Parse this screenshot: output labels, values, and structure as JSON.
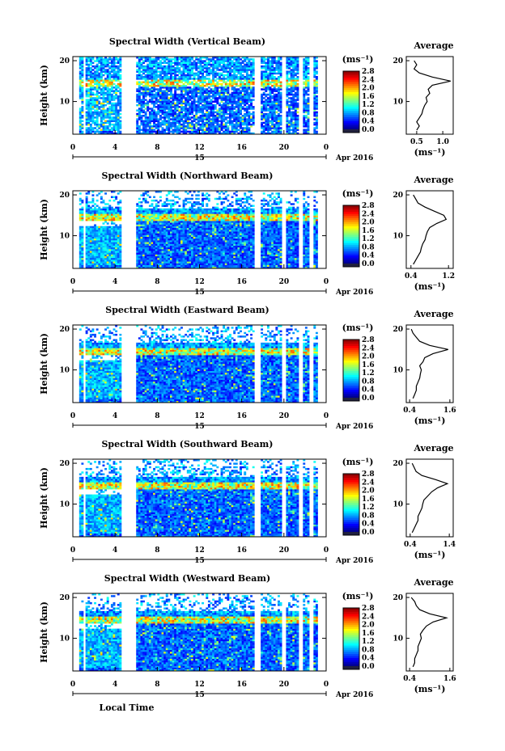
{
  "chart_data": [
    {
      "type": "heatmap",
      "title": "Spectral Width (Vertical Beam)",
      "ylabel": "Height (km)",
      "yticks": [
        "10",
        "20"
      ],
      "ylim": [
        2,
        21
      ],
      "xticks": [
        "0",
        "4",
        "8",
        "12",
        "16",
        "20",
        "0"
      ],
      "xlim": [
        0,
        24
      ],
      "date_day": "15",
      "date_label": "Apr 2016",
      "colorbar": {
        "unit": "(ms⁻¹)",
        "ticks": [
          "2.8",
          "2.4",
          "2.0",
          "1.6",
          "1.2",
          "0.8",
          "0.4",
          "0.0"
        ],
        "range": [
          0,
          2.8
        ]
      },
      "data_gaps_hours": [
        [
          0,
          0.6
        ],
        [
          0.9,
          1.3
        ],
        [
          4.7,
          6.1
        ],
        [
          17.3,
          17.8
        ],
        [
          19.8,
          20.3
        ],
        [
          21.5,
          21.8
        ],
        [
          22.5,
          22.8
        ],
        [
          23.2,
          24
        ]
      ],
      "profile": {
        "title": "Average",
        "xlabel": "(ms⁻¹)",
        "xticks": [
          "0.5",
          "1.0"
        ],
        "xlim": [
          0.3,
          1.2
        ],
        "heights_km": [
          3,
          4,
          5,
          6,
          7,
          8,
          9,
          10,
          11,
          12,
          13,
          14,
          15,
          16,
          17,
          18,
          19,
          20
        ],
        "values": [
          0.5,
          0.55,
          0.5,
          0.55,
          0.6,
          0.62,
          0.65,
          0.7,
          0.68,
          0.75,
          0.72,
          0.8,
          1.15,
          0.8,
          0.55,
          0.45,
          0.5,
          0.45
        ]
      }
    },
    {
      "type": "heatmap",
      "title": "Spectral Width (Northward Beam)",
      "ylabel": "Height (km)",
      "yticks": [
        "10",
        "20"
      ],
      "ylim": [
        2,
        21
      ],
      "xticks": [
        "0",
        "4",
        "8",
        "12",
        "16",
        "20",
        "0"
      ],
      "xlim": [
        0,
        24
      ],
      "date_day": "15",
      "date_label": "Apr 2016",
      "colorbar": {
        "unit": "(ms⁻¹)",
        "ticks": [
          "2.8",
          "2.4",
          "2.0",
          "1.6",
          "1.2",
          "0.8",
          "0.4",
          "0.0"
        ],
        "range": [
          0,
          2.8
        ]
      },
      "data_gaps_hours": [
        [
          0,
          0.7
        ],
        [
          0.9,
          1.2
        ],
        [
          4.7,
          6.1
        ],
        [
          17.3,
          17.8
        ],
        [
          19.8,
          20.3
        ],
        [
          21.5,
          21.8
        ],
        [
          22.5,
          22.8
        ],
        [
          23.2,
          24
        ]
      ],
      "profile": {
        "title": "Average",
        "xlabel": "(ms⁻¹)",
        "xticks": [
          "0.4",
          "1.2"
        ],
        "xlim": [
          0.3,
          1.3
        ],
        "heights_km": [
          3,
          4,
          5,
          6,
          7,
          8,
          9,
          10,
          11,
          12,
          13,
          14,
          15,
          16,
          17,
          18,
          19,
          20
        ],
        "values": [
          0.45,
          0.5,
          0.55,
          0.6,
          0.62,
          0.65,
          0.7,
          0.72,
          0.75,
          0.8,
          0.95,
          1.15,
          1.1,
          0.9,
          0.7,
          0.55,
          0.5,
          0.45
        ]
      }
    },
    {
      "type": "heatmap",
      "title": "Spectral Width (Eastward Beam)",
      "ylabel": "Height (km)",
      "yticks": [
        "10",
        "20"
      ],
      "ylim": [
        2,
        21
      ],
      "xticks": [
        "0",
        "4",
        "8",
        "12",
        "16",
        "20",
        "0"
      ],
      "xlim": [
        0,
        24
      ],
      "date_day": "15",
      "date_label": "Apr 2016",
      "colorbar": {
        "unit": "(ms⁻¹)",
        "ticks": [
          "2.8",
          "2.4",
          "2.0",
          "1.6",
          "1.2",
          "0.8",
          "0.4",
          "0.0"
        ],
        "range": [
          0,
          2.8
        ]
      },
      "data_gaps_hours": [
        [
          0,
          0.7
        ],
        [
          0.9,
          1.2
        ],
        [
          4.7,
          6.1
        ],
        [
          17.3,
          17.8
        ],
        [
          19.8,
          20.3
        ],
        [
          21.5,
          21.8
        ],
        [
          22.5,
          22.8
        ],
        [
          23.2,
          24
        ]
      ],
      "profile": {
        "title": "Average",
        "xlabel": "(ms⁻¹)",
        "xticks": [
          "0.4",
          "1.6"
        ],
        "xlim": [
          0.3,
          1.7
        ],
        "heights_km": [
          3,
          4,
          5,
          6,
          7,
          8,
          9,
          10,
          11,
          12,
          13,
          14,
          15,
          16,
          17,
          18,
          19,
          20
        ],
        "values": [
          0.5,
          0.55,
          0.6,
          0.6,
          0.65,
          0.7,
          0.72,
          0.75,
          0.7,
          0.8,
          0.85,
          1.1,
          1.55,
          1.0,
          0.7,
          0.6,
          0.5,
          0.45
        ]
      }
    },
    {
      "type": "heatmap",
      "title": "Spectral Width (Southward Beam)",
      "ylabel": "Height (km)",
      "yticks": [
        "10",
        "20"
      ],
      "ylim": [
        2,
        21
      ],
      "xticks": [
        "0",
        "4",
        "8",
        "12",
        "16",
        "20",
        "0"
      ],
      "xlim": [
        0,
        24
      ],
      "date_day": "15",
      "date_label": "Apr 2016",
      "colorbar": {
        "unit": "(ms⁻¹)",
        "ticks": [
          "2.8",
          "2.4",
          "2.0",
          "1.6",
          "1.2",
          "0.8",
          "0.4",
          "0.0"
        ],
        "range": [
          0,
          2.8
        ]
      },
      "data_gaps_hours": [
        [
          0,
          0.7
        ],
        [
          0.9,
          1.2
        ],
        [
          4.7,
          6.1
        ],
        [
          17.3,
          17.8
        ],
        [
          19.8,
          20.3
        ],
        [
          21.5,
          21.8
        ],
        [
          22.5,
          22.8
        ],
        [
          23.2,
          24
        ]
      ],
      "profile": {
        "title": "Average",
        "xlabel": "(ms⁻¹)",
        "xticks": [
          "0.4",
          "1.4"
        ],
        "xlim": [
          0.3,
          1.5
        ],
        "heights_km": [
          3,
          4,
          5,
          6,
          7,
          8,
          9,
          10,
          11,
          12,
          13,
          14,
          15,
          16,
          17,
          18,
          19,
          20
        ],
        "values": [
          0.45,
          0.5,
          0.55,
          0.6,
          0.6,
          0.65,
          0.7,
          0.72,
          0.75,
          0.85,
          0.95,
          1.1,
          1.35,
          1.05,
          0.7,
          0.55,
          0.5,
          0.45
        ]
      }
    },
    {
      "type": "heatmap",
      "title": "Spectral Width (Westward Beam)",
      "ylabel": "Height (km)",
      "yticks": [
        "10",
        "20"
      ],
      "ylim": [
        2,
        21
      ],
      "xticks": [
        "0",
        "4",
        "8",
        "12",
        "16",
        "20",
        "0"
      ],
      "xlim": [
        0,
        24
      ],
      "date_day": "15",
      "date_label": "Apr 2016",
      "xlabel": "Local Time",
      "colorbar": {
        "unit": "(ms⁻¹)",
        "ticks": [
          "2.8",
          "2.4",
          "2.0",
          "1.6",
          "1.2",
          "0.8",
          "0.4",
          "0.0"
        ],
        "range": [
          0,
          2.8
        ]
      },
      "data_gaps_hours": [
        [
          0,
          0.7
        ],
        [
          0.9,
          1.2
        ],
        [
          4.7,
          6.1
        ],
        [
          17.3,
          17.8
        ],
        [
          19.8,
          20.3
        ],
        [
          21.5,
          21.8
        ],
        [
          22.5,
          22.8
        ],
        [
          23.2,
          24
        ]
      ],
      "profile": {
        "title": "Average",
        "xlabel": "(ms⁻¹)",
        "xticks": [
          "0.4",
          "1.6"
        ],
        "xlim": [
          0.3,
          1.7
        ],
        "heights_km": [
          3,
          4,
          5,
          6,
          7,
          8,
          9,
          10,
          11,
          12,
          13,
          14,
          15,
          16,
          17,
          18,
          19,
          20
        ],
        "values": [
          0.5,
          0.55,
          0.55,
          0.6,
          0.65,
          0.65,
          0.7,
          0.75,
          0.72,
          0.8,
          0.9,
          1.1,
          1.5,
          1.0,
          0.7,
          0.6,
          0.55,
          0.45
        ]
      }
    }
  ]
}
